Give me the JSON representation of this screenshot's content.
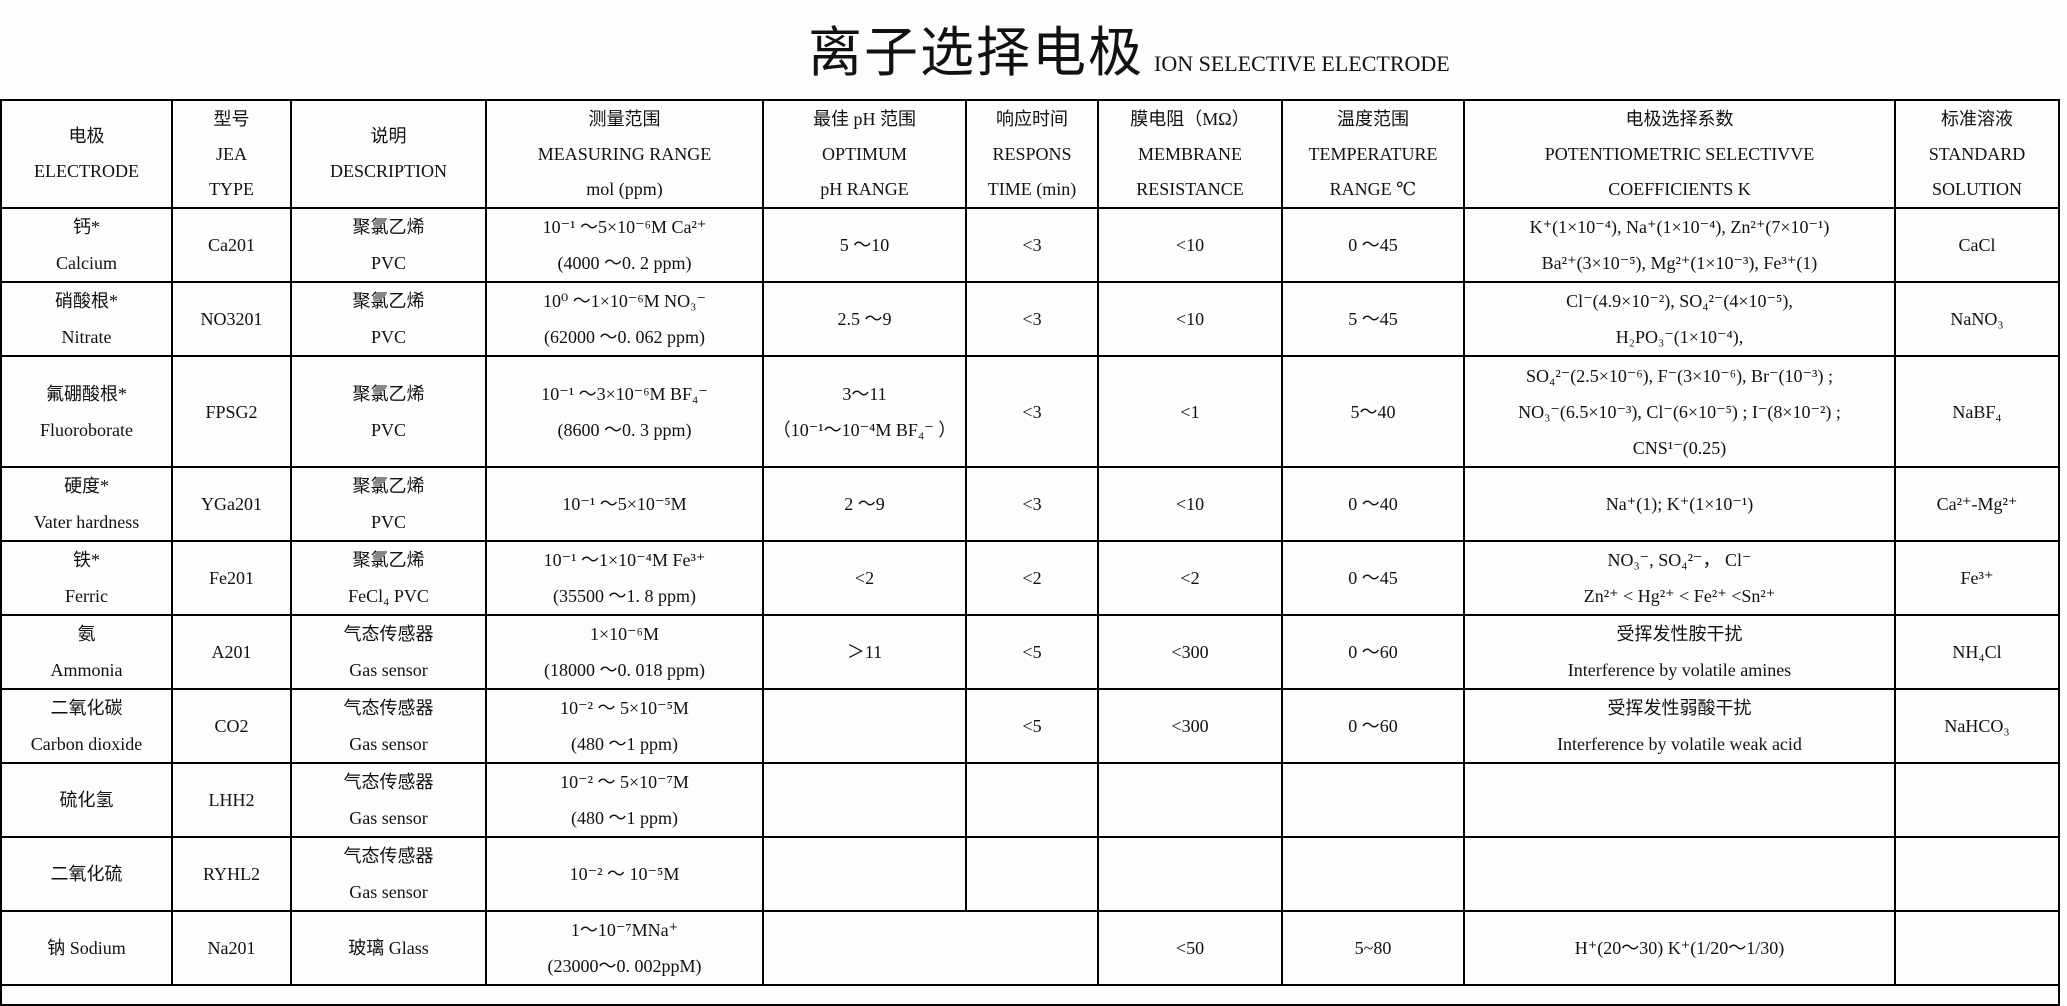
{
  "title": {
    "cn": "离子选择电极",
    "en": "ION SELECTIVE ELECTRODE"
  },
  "header": [
    [
      "电极",
      "ELECTRODE"
    ],
    [
      "型号",
      "JEA",
      "TYPE"
    ],
    [
      "说明",
      "DESCRIPTION"
    ],
    [
      "测量范围",
      "MEASURING RANGE",
      "mol (ppm)"
    ],
    [
      "最佳 pH 范围",
      "OPTIMUM",
      "pH RANGE"
    ],
    [
      "响应时间",
      "RESPONS",
      "TIME (min)"
    ],
    [
      "膜电阻（MΩ）",
      "MEMBRANE",
      "RESISTANCE"
    ],
    [
      "温度范围",
      "TEMPERATURE",
      "RANGE ℃"
    ],
    [
      "电极选择系数",
      "POTENTIOMETRIC SELECTIVVE",
      "COEFFICIENTS   K"
    ],
    [
      "标准溶液",
      "STANDARD",
      "SOLUTION"
    ]
  ],
  "rows": [
    {
      "name": "calcium",
      "cells": [
        [
          "钙*",
          "Calcium"
        ],
        [
          "Ca201"
        ],
        [
          "聚氯乙烯",
          "PVC"
        ],
        [
          "10⁻¹ ～5×10⁻⁶M Ca²⁺",
          "(4000 ～0. 2 ppm)"
        ],
        [
          "5 ～10"
        ],
        [
          "<3"
        ],
        [
          "<10"
        ],
        [
          "0 ～45"
        ],
        [
          "K⁺(1×10⁻⁴),   Na⁺(1×10⁻⁴), Zn²⁺(7×10⁻¹)",
          "Ba²⁺(3×10⁻⁵), Mg²⁺(1×10⁻³), Fe³⁺(1)"
        ],
        [
          "CaCl"
        ]
      ]
    },
    {
      "name": "nitrate",
      "cells": [
        [
          "硝酸根*",
          "Nitrate"
        ],
        [
          "NO3201"
        ],
        [
          "聚氯乙烯",
          "PVC"
        ],
        [
          "10⁰ ～1×10⁻⁶M NO₃⁻",
          "(62000 ～0. 062 ppm)"
        ],
        [
          "2.5 ～9"
        ],
        [
          "<3"
        ],
        [
          "<10"
        ],
        [
          "5 ～45"
        ],
        [
          "Cl⁻(4.9×10⁻²),   SO₄²⁻(4×10⁻⁵),",
          "H₂PO₃⁻(1×10⁻⁴),"
        ],
        [
          "NaNO₃"
        ]
      ]
    },
    {
      "name": "fluoroborate",
      "cells": [
        [
          "氟硼酸根*",
          "Fluoroborate"
        ],
        [
          "FPSG2"
        ],
        [
          "聚氯乙烯",
          "PVC"
        ],
        [
          "10⁻¹ ～3×10⁻⁶M BF₄⁻",
          "(8600 ～0. 3 ppm)"
        ],
        [
          "3～11",
          "（10⁻¹～10⁻⁴M BF₄⁻ ）"
        ],
        [
          "<3"
        ],
        [
          "<1"
        ],
        [
          "5～40"
        ],
        [
          "SO₄²⁻(2.5×10⁻⁶), F⁻(3×10⁻⁶), Br⁻(10⁻³) ;",
          "NO₃⁻(6.5×10⁻³), Cl⁻(6×10⁻⁵) ; I⁻(8×10⁻²) ;",
          "CNS¹⁻(0.25)"
        ],
        [
          "NaBF₄"
        ]
      ]
    },
    {
      "name": "water-hardness",
      "cells": [
        [
          "硬度*",
          "Vater hardness"
        ],
        [
          "YGa201"
        ],
        [
          "聚氯乙烯",
          "PVC"
        ],
        [
          "10⁻¹ ～5×10⁻⁵M"
        ],
        [
          "2 ～9"
        ],
        [
          "<3"
        ],
        [
          "<10"
        ],
        [
          "0 ～40"
        ],
        [
          "Na⁺(1); K⁺(1×10⁻¹)"
        ],
        [
          "Ca²⁺-Mg²⁺"
        ]
      ]
    },
    {
      "name": "ferric",
      "cells": [
        [
          "铁*",
          "Ferric"
        ],
        [
          "Fe201"
        ],
        [
          "聚氯乙烯",
          "FeCl₄ PVC"
        ],
        [
          "10⁻¹ ～1×10⁻⁴M Fe³⁺",
          "(35500 ～1. 8 ppm)"
        ],
        [
          "<2"
        ],
        [
          "<2"
        ],
        [
          "<2"
        ],
        [
          "0 ～45"
        ],
        [
          "NO₃⁻, SO₄²⁻， Cl⁻",
          "Zn²⁺ < Hg²⁺  < Fe²⁺   <Sn²⁺"
        ],
        [
          "Fe³⁺"
        ]
      ]
    },
    {
      "name": "ammonia",
      "cells": [
        [
          "氨",
          "Ammonia"
        ],
        [
          "A201"
        ],
        [
          "气态传感器",
          "Gas   sensor"
        ],
        [
          "1×10⁻⁶M",
          "(18000 ～0. 018 ppm)"
        ],
        [
          "＞11"
        ],
        [
          "<5"
        ],
        [
          "<300"
        ],
        [
          "0 ～60"
        ],
        [
          "受挥发性胺干扰",
          "Interference by volatile amines"
        ],
        [
          "NH₄Cl"
        ]
      ]
    },
    {
      "name": "carbon-dioxide",
      "cells": [
        [
          "二氧化碳",
          "Carbon dioxide"
        ],
        [
          "CO2"
        ],
        [
          "气态传感器",
          "Gas   sensor"
        ],
        [
          "10⁻² ～ 5×10⁻⁵M",
          "(480 ～1 ppm)"
        ],
        [],
        [
          "<5"
        ],
        [
          "<300"
        ],
        [
          "0 ～60"
        ],
        [
          "受挥发性弱酸干扰",
          "Interference by volatile weak acid"
        ],
        [
          "NaHCO₃"
        ]
      ]
    },
    {
      "name": "hydrogen-sulfide",
      "cells": [
        [
          "硫化氢"
        ],
        [
          "LHH2"
        ],
        [
          "气态传感器",
          "Gas   sensor"
        ],
        [
          "10⁻² ～ 5×10⁻⁷M",
          "(480 ～1 ppm)"
        ],
        [],
        [],
        [],
        [],
        [],
        []
      ]
    },
    {
      "name": "sulfur-dioxide",
      "cells": [
        [
          "二氧化硫"
        ],
        [
          "RYHL2"
        ],
        [
          "气态传感器",
          "Gas   sensor"
        ],
        [
          "10⁻² ～ 10⁻⁵M"
        ],
        [],
        [],
        [],
        [],
        [],
        []
      ]
    },
    {
      "name": "sodium",
      "cells": [
        [
          "钠 Sodium"
        ],
        [
          "Na201"
        ],
        [
          "玻璃 Glass"
        ],
        [
          "1～10⁻⁷MNa⁺",
          "(23000～0. 002ppM)"
        ],
        [],
        [
          "<50"
        ],
        [
          "5~80"
        ],
        [
          "H⁺(20～30)  K⁺(1/20～1/30)"
        ],
        []
      ],
      "span": {
        "4": 2
      }
    }
  ]
}
